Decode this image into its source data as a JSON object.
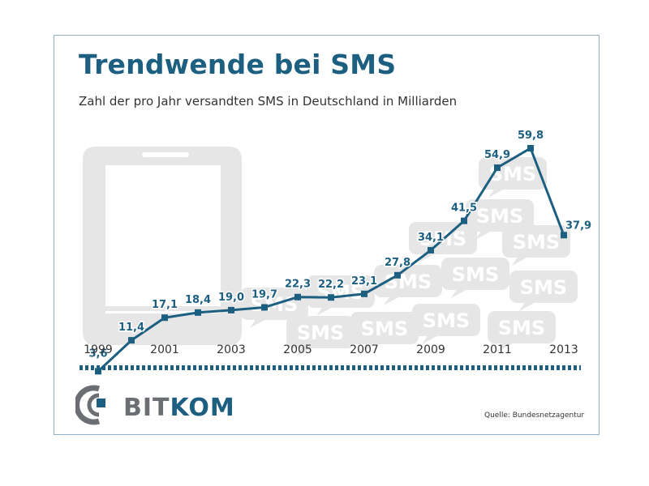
{
  "title": "Trendwende bei SMS",
  "subtitle": "Zahl der pro Jahr versandten SMS in Deutschland in Milliarden",
  "source": "Quelle: Bundesnetzagentur",
  "logo": {
    "part1": "BIT",
    "part2": "KOM"
  },
  "background_bubble_label": "SMS",
  "colors": {
    "line": "#1c5f80",
    "title": "#1c5f80",
    "watermark": "#e6e6e6",
    "border": "#8fb0c4",
    "logo_gray": "#6b6e72"
  },
  "chart_data": {
    "type": "line",
    "title": "Trendwende bei SMS",
    "subtitle": "Zahl der pro Jahr versandten SMS in Deutschland in Milliarden",
    "xlabel": "",
    "ylabel": "",
    "x": [
      1999,
      2000,
      2001,
      2002,
      2003,
      2004,
      2005,
      2006,
      2007,
      2008,
      2009,
      2010,
      2011,
      2012,
      2013
    ],
    "values": [
      3.6,
      11.4,
      17.1,
      18.4,
      19.0,
      19.7,
      22.3,
      22.2,
      23.1,
      27.8,
      34.1,
      41.5,
      54.9,
      59.8,
      37.9
    ],
    "data_labels": [
      "3,6",
      "11,4",
      "17,1",
      "18,4",
      "19,0",
      "19,7",
      "22,3",
      "22,2",
      "23,1",
      "27,8",
      "34,1",
      "41,5",
      "54,9",
      "59,8",
      "37,9"
    ],
    "x_tick_labels": [
      "1999",
      "2001",
      "2003",
      "2005",
      "2007",
      "2009",
      "2011",
      "2013"
    ],
    "ylim": [
      0,
      64
    ],
    "grid": false,
    "legend": "none"
  }
}
